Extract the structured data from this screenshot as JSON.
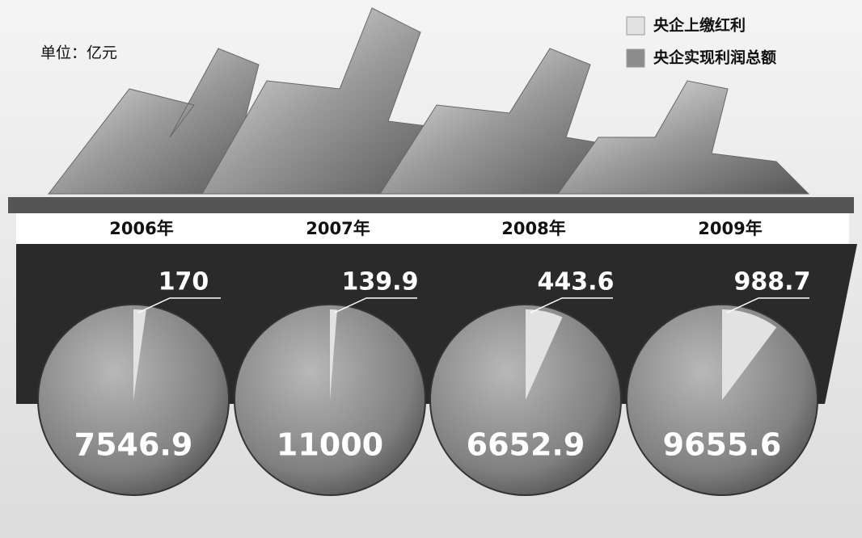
{
  "chart_data": {
    "type": "pie",
    "unit": "单位：亿元",
    "categories": [
      "2006年",
      "2007年",
      "2008年",
      "2009年"
    ],
    "series": [
      {
        "name": "央企上缴红利",
        "color": "#e2e2e2",
        "values": [
          170,
          139.9,
          443.6,
          988.7
        ]
      },
      {
        "name": "央企实现利润总额",
        "color": "#8c8c8c",
        "values": [
          7546.9,
          11000,
          6652.9,
          9655.6
        ]
      }
    ]
  }
}
